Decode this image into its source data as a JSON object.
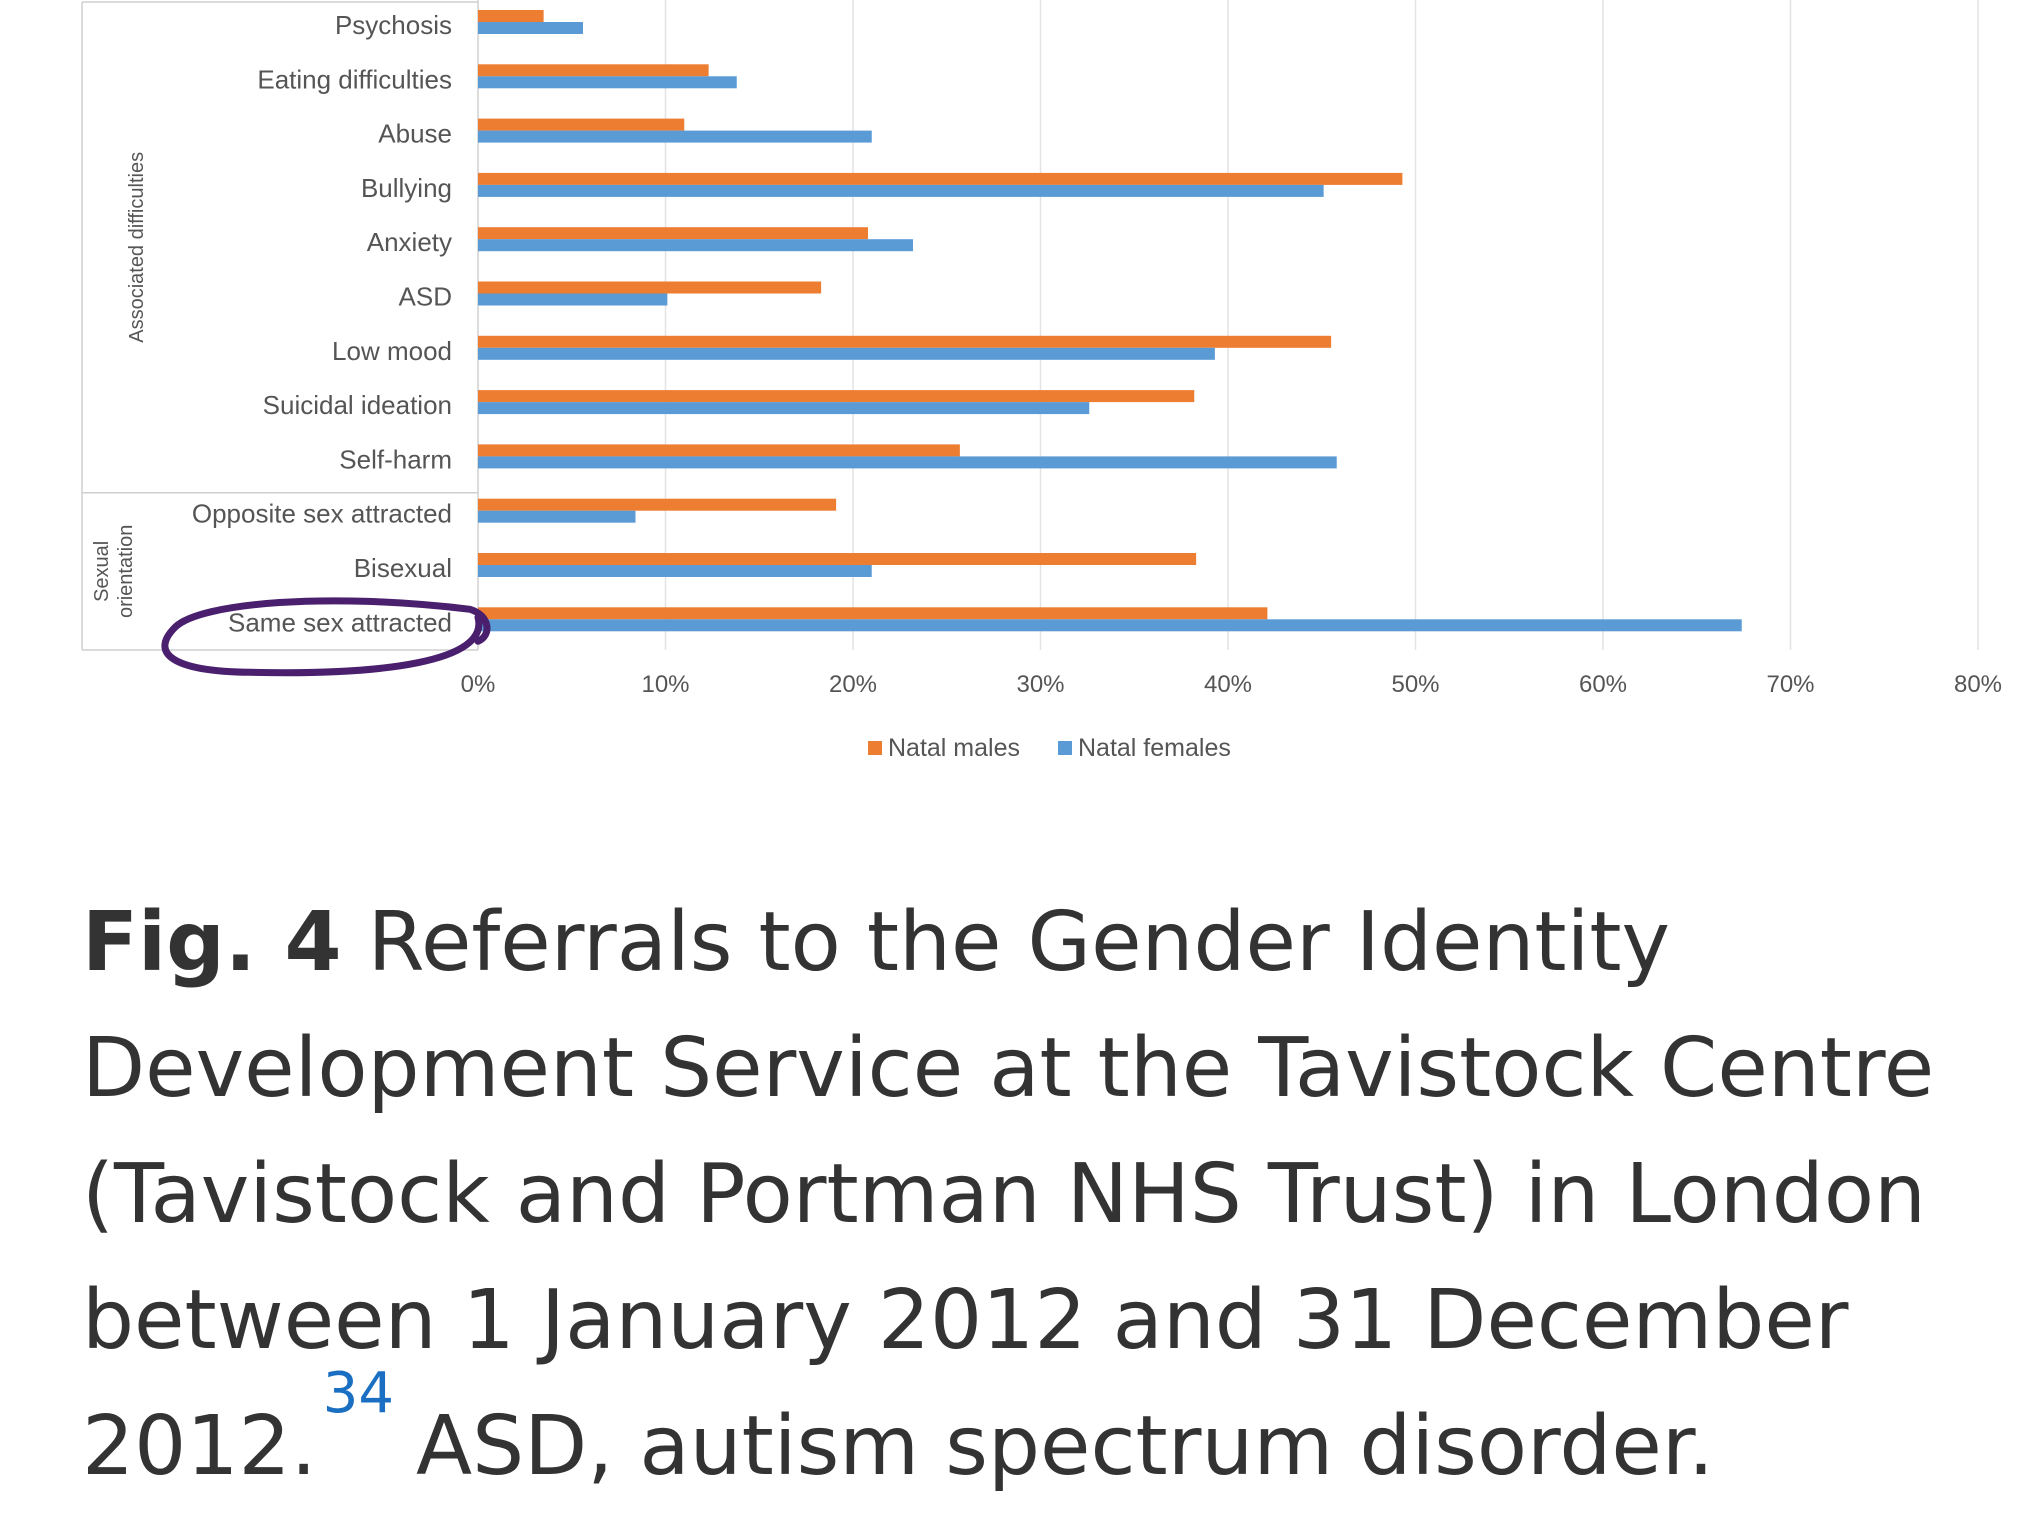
{
  "chart_data": {
    "type": "bar",
    "orientation": "horizontal",
    "categories": [
      "Psychosis",
      "Eating difficulties",
      "Abuse",
      "Bullying",
      "Anxiety",
      "ASD",
      "Low mood",
      "Suicidal ideation",
      "Self-harm",
      "Opposite sex attracted",
      "Bisexual",
      "Same sex attracted"
    ],
    "groups": [
      {
        "label": "Associated difficulties",
        "categories": [
          "Psychosis",
          "Eating difficulties",
          "Abuse",
          "Bullying",
          "Anxiety",
          "ASD",
          "Low mood",
          "Suicidal ideation",
          "Self-harm"
        ]
      },
      {
        "label": "Sexual orientation",
        "categories": [
          "Opposite sex attracted",
          "Bisexual",
          "Same sex attracted"
        ]
      }
    ],
    "series": [
      {
        "name": "Natal males",
        "color": "#ed7d31",
        "values": [
          3.5,
          12.3,
          11.0,
          49.3,
          20.8,
          18.3,
          45.5,
          38.2,
          25.7,
          19.1,
          38.3,
          42.1
        ]
      },
      {
        "name": "Natal females",
        "color": "#5b9bd5",
        "values": [
          5.6,
          13.8,
          21.0,
          45.1,
          23.2,
          10.1,
          39.3,
          32.6,
          45.8,
          8.4,
          21.0,
          67.4
        ]
      }
    ],
    "xlim": [
      0,
      80
    ],
    "xticks": [
      "0%",
      "10%",
      "20%",
      "30%",
      "40%",
      "50%",
      "60%",
      "70%",
      "80%"
    ],
    "grid": true,
    "legend_position": "bottom",
    "highlight": {
      "category": "Same sex attracted",
      "style": "hand-drawn purple circle",
      "color": "#4a1f6e"
    }
  },
  "caption": {
    "fig_label": "Fig. 4",
    "text_before_ref": "Referrals to the Gender Identity Development Service at the Tavistock Centre (Tavistock and Portman NHS Trust) in London between 1 January 2012 and 31 December 2012.",
    "ref": "34",
    "text_after_ref": "ASD, autism spectrum disorder."
  }
}
